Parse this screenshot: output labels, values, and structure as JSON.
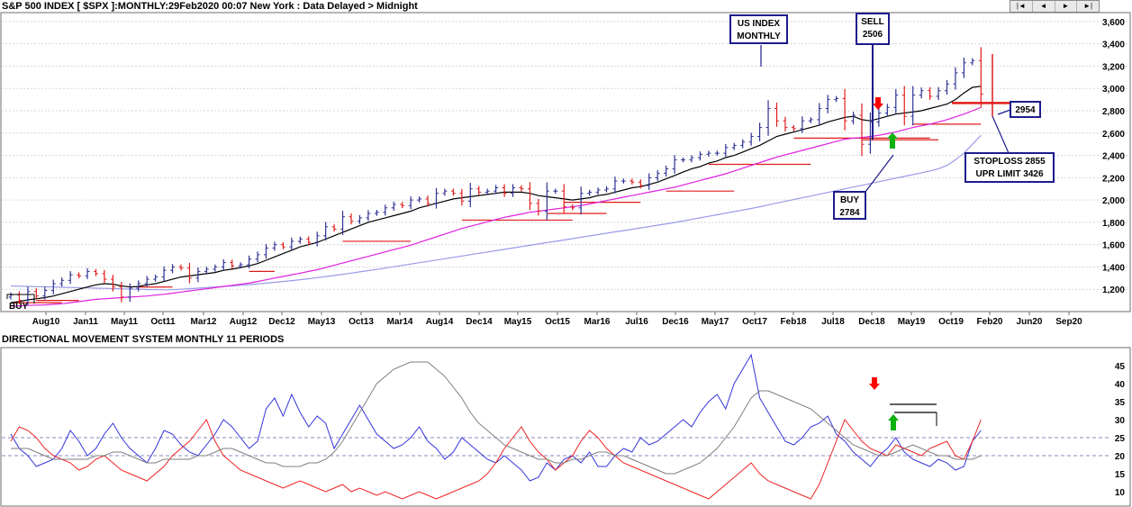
{
  "header": {
    "title": "S&P 500 INDEX [ $SPX ]:MONTHLY:29Feb2020 00:07 New York : Data Delayed > Midnight",
    "nav": [
      "|◄",
      "◄",
      "►",
      "►|"
    ]
  },
  "indicator": {
    "title": "DIRECTIONAL MOVEMENT SYSTEM MONTHLY 11 PERIODS"
  },
  "colors": {
    "up_bar": "#2e3192",
    "down_bar": "#e01b1b",
    "ma_short": "#000000",
    "ma_mid": "#e020e0",
    "ma_long": "#9a9ae8",
    "plus_di": "#3333dd",
    "minus_di": "#ee2222",
    "adx": "#7f7f7f",
    "callout_border": "#1c1c8c",
    "arrow_down": "#ff0000",
    "arrow_up": "#10b010"
  },
  "chart_data": [
    {
      "type": "bar",
      "title": "S&P 500 INDEX [ $SPX ]:MONTHLY",
      "x_labels": [
        "Aug10",
        "Jan11",
        "May11",
        "Oct11",
        "Mar12",
        "Aug12",
        "Dec12",
        "May13",
        "Oct13",
        "Mar14",
        "Aug14",
        "Dec14",
        "May15",
        "Oct15",
        "Mar16",
        "Jul16",
        "Dec16",
        "May17",
        "Oct17",
        "Feb18",
        "Jul18",
        "Dec18",
        "May19",
        "Oct19",
        "Feb20",
        "Jun20",
        "Sep20"
      ],
      "y_ticks": [
        "1,200",
        "1,400",
        "1,600",
        "1,800",
        "2,000",
        "2,200",
        "2,400",
        "2,600",
        "2,800",
        "3,000",
        "3,200",
        "3,400",
        "3,600"
      ],
      "ylim": [
        1000,
        3680
      ],
      "close": [
        1150,
        1100,
        1180,
        1140,
        1190,
        1250,
        1280,
        1330,
        1320,
        1360,
        1340,
        1290,
        1220,
        1130,
        1210,
        1250,
        1290,
        1310,
        1370,
        1400,
        1390,
        1300,
        1360,
        1380,
        1400,
        1440,
        1410,
        1420,
        1470,
        1510,
        1570,
        1600,
        1580,
        1630,
        1650,
        1620,
        1680,
        1760,
        1740,
        1850,
        1810,
        1840,
        1880,
        1890,
        1930,
        1960,
        1950,
        2000,
        2010,
        1970,
        2060,
        2080,
        2060,
        1990,
        2100,
        2070,
        2080,
        2110,
        2060,
        2110,
        2100,
        1970,
        1900,
        2080,
        2080,
        1940,
        1930,
        2060,
        2070,
        2090,
        2100,
        2170,
        2170,
        2160,
        2130,
        2200,
        2240,
        2280,
        2360,
        2360,
        2380,
        2410,
        2420,
        2420,
        2470,
        2490,
        2520,
        2570,
        2650,
        2820,
        2710,
        2650,
        2640,
        2710,
        2720,
        2820,
        2900,
        2910,
        2710,
        2760,
        2500,
        2700,
        2780,
        2830,
        2940,
        2750,
        2940,
        2980,
        2930,
        2980,
        3040,
        3140,
        3230,
        3250,
        2950
      ],
      "ma_short": [
        1080,
        1090,
        1105,
        1115,
        1125,
        1140,
        1160,
        1180,
        1200,
        1220,
        1240,
        1250,
        1245,
        1230,
        1220,
        1225,
        1240,
        1250,
        1270,
        1290,
        1310,
        1320,
        1330,
        1340,
        1350,
        1370,
        1380,
        1395,
        1410,
        1430,
        1460,
        1490,
        1520,
        1550,
        1580,
        1600,
        1620,
        1650,
        1680,
        1710,
        1740,
        1770,
        1800,
        1820,
        1840,
        1860,
        1880,
        1900,
        1930,
        1950,
        1970,
        1990,
        2010,
        2020,
        2030,
        2040,
        2050,
        2060,
        2070,
        2070,
        2070,
        2060,
        2040,
        2030,
        2020,
        2010,
        2000,
        2010,
        2020,
        2040,
        2050,
        2070,
        2090,
        2110,
        2120,
        2140,
        2160,
        2190,
        2220,
        2250,
        2280,
        2300,
        2330,
        2350,
        2380,
        2400,
        2430,
        2460,
        2490,
        2530,
        2570,
        2590,
        2610,
        2630,
        2650,
        2670,
        2700,
        2720,
        2740,
        2750,
        2720,
        2710,
        2730,
        2750,
        2770,
        2780,
        2790,
        2800,
        2820,
        2840,
        2860,
        2900,
        2960,
        3010,
        3020
      ],
      "ma_mid": [
        1050,
        1052,
        1055,
        1058,
        1060,
        1065,
        1070,
        1080,
        1090,
        1100,
        1110,
        1115,
        1120,
        1125,
        1130,
        1135,
        1140,
        1148,
        1155,
        1165,
        1175,
        1185,
        1195,
        1205,
        1215,
        1225,
        1235,
        1245,
        1255,
        1270,
        1285,
        1300,
        1315,
        1330,
        1345,
        1360,
        1375,
        1395,
        1415,
        1435,
        1455,
        1475,
        1495,
        1515,
        1535,
        1555,
        1575,
        1595,
        1620,
        1645,
        1670,
        1695,
        1720,
        1745,
        1765,
        1785,
        1805,
        1825,
        1845,
        1860,
        1875,
        1890,
        1900,
        1910,
        1920,
        1930,
        1940,
        1950,
        1965,
        1980,
        1995,
        2010,
        2025,
        2040,
        2055,
        2070,
        2085,
        2100,
        2115,
        2135,
        2155,
        2175,
        2195,
        2215,
        2235,
        2260,
        2285,
        2310,
        2335,
        2360,
        2385,
        2405,
        2425,
        2445,
        2465,
        2485,
        2505,
        2525,
        2545,
        2555,
        2560,
        2570,
        2580,
        2595,
        2610,
        2630,
        2650,
        2665,
        2680,
        2700,
        2720,
        2745,
        2770,
        2800,
        2830
      ],
      "ma_long": [
        1230,
        1228,
        1226,
        1224,
        1222,
        1220,
        1218,
        1216,
        1214,
        1212,
        1210,
        1208,
        1206,
        1204,
        1202,
        1200,
        1198,
        1196,
        1195,
        1196,
        1200,
        1205,
        1210,
        1215,
        1220,
        1225,
        1230,
        1236,
        1242,
        1248,
        1255,
        1262,
        1270,
        1278,
        1286,
        1295,
        1304,
        1314,
        1324,
        1334,
        1345,
        1356,
        1367,
        1378,
        1390,
        1402,
        1414,
        1426,
        1438,
        1450,
        1462,
        1474,
        1486,
        1498,
        1510,
        1522,
        1534,
        1546,
        1558,
        1570,
        1582,
        1594,
        1606,
        1618,
        1630,
        1642,
        1654,
        1666,
        1678,
        1690,
        1702,
        1714,
        1726,
        1738,
        1750,
        1762,
        1774,
        1786,
        1798,
        1812,
        1826,
        1840,
        1854,
        1868,
        1882,
        1896,
        1910,
        1924,
        1940,
        1956,
        1972,
        1988,
        2004,
        2020,
        2036,
        2052,
        2068,
        2084,
        2100,
        2116,
        2132,
        2148,
        2164,
        2180,
        2196,
        2212,
        2228,
        2244,
        2260,
        2280,
        2310,
        2360,
        2420,
        2500,
        2580
      ],
      "annotations": {
        "us_index_line1": "US INDEX",
        "us_index_line2": "MONTHLY",
        "sell_line1": "SELL",
        "sell_line2": "2506",
        "buy_line1": "BUY",
        "buy_line2": "2784",
        "ma_value": "2954",
        "stoploss": "STOPLOSS 2855",
        "upr_limit": "UPR LIMIT 3426",
        "buy_left": "BUY"
      }
    },
    {
      "type": "line",
      "title": "DIRECTIONAL MOVEMENT SYSTEM MONTHLY 11 PERIODS",
      "y_ticks": [
        "10",
        "15",
        "20",
        "25",
        "30",
        "35",
        "40",
        "45"
      ],
      "ylim": [
        6,
        50
      ],
      "ref_lines": [
        20,
        25
      ],
      "series": [
        {
          "values": [
            26,
            22,
            20,
            17,
            18,
            19,
            22,
            27,
            24,
            20,
            22,
            26,
            29,
            25,
            22,
            20,
            18,
            22,
            27,
            26,
            23,
            21,
            20,
            23,
            26,
            30,
            28,
            25,
            22,
            24,
            33,
            36,
            31,
            37,
            32,
            28,
            31,
            29,
            22,
            26,
            30,
            34,
            30,
            26,
            24,
            22,
            23,
            25,
            28,
            24,
            22,
            19,
            21,
            25,
            23,
            21,
            19,
            18,
            20,
            18,
            16,
            13,
            14,
            18,
            16,
            19,
            20,
            18,
            21,
            17,
            17,
            20,
            22,
            21,
            25,
            23,
            24,
            26,
            28,
            30,
            28,
            32,
            35,
            37,
            33,
            40,
            44,
            48,
            36,
            32,
            28,
            24,
            23,
            25,
            28,
            29,
            31,
            26,
            24,
            21,
            19,
            17,
            20,
            22,
            25,
            21,
            19,
            18,
            17,
            19,
            18,
            16,
            17,
            24,
            27
          ]
        },
        {
          "values": [
            24,
            28,
            27,
            25,
            22,
            20,
            19,
            18,
            16,
            17,
            19,
            20,
            18,
            16,
            15,
            14,
            13,
            15,
            17,
            20,
            22,
            24,
            27,
            30,
            24,
            20,
            18,
            16,
            15,
            14,
            13,
            12,
            11,
            12,
            13,
            12,
            11,
            10,
            11,
            12,
            10,
            11,
            10,
            9,
            10,
            9,
            8,
            9,
            10,
            9,
            8,
            9,
            10,
            11,
            12,
            13,
            15,
            18,
            22,
            25,
            28,
            24,
            21,
            19,
            16,
            18,
            20,
            24,
            27,
            25,
            22,
            20,
            18,
            17,
            16,
            15,
            14,
            13,
            12,
            11,
            10,
            9,
            8,
            10,
            12,
            14,
            16,
            18,
            15,
            13,
            12,
            11,
            10,
            9,
            8,
            12,
            18,
            24,
            30,
            27,
            24,
            22,
            21,
            20,
            23,
            22,
            21,
            20,
            22,
            23,
            24,
            20,
            19,
            24,
            30
          ]
        },
        {
          "values": [
            22,
            22,
            22,
            21,
            20,
            19,
            19,
            19,
            19,
            19,
            20,
            20,
            21,
            21,
            20,
            19,
            18,
            18,
            19,
            19,
            19,
            19,
            20,
            20,
            21,
            22,
            22,
            21,
            20,
            19,
            18,
            18,
            17,
            17,
            17,
            18,
            18,
            19,
            21,
            24,
            28,
            32,
            36,
            40,
            42,
            44,
            45,
            46,
            46,
            46,
            44,
            42,
            39,
            36,
            32,
            29,
            27,
            25,
            23,
            22,
            21,
            20,
            19,
            19,
            18,
            18,
            19,
            19,
            20,
            21,
            21,
            20,
            20,
            19,
            18,
            17,
            16,
            15,
            15,
            16,
            17,
            18,
            20,
            22,
            25,
            28,
            32,
            36,
            38,
            38,
            37,
            36,
            35,
            34,
            33,
            31,
            29,
            27,
            25,
            23,
            22,
            21,
            20,
            20,
            21,
            22,
            23,
            22,
            21,
            20,
            20,
            19,
            19,
            19,
            20
          ]
        }
      ]
    }
  ]
}
